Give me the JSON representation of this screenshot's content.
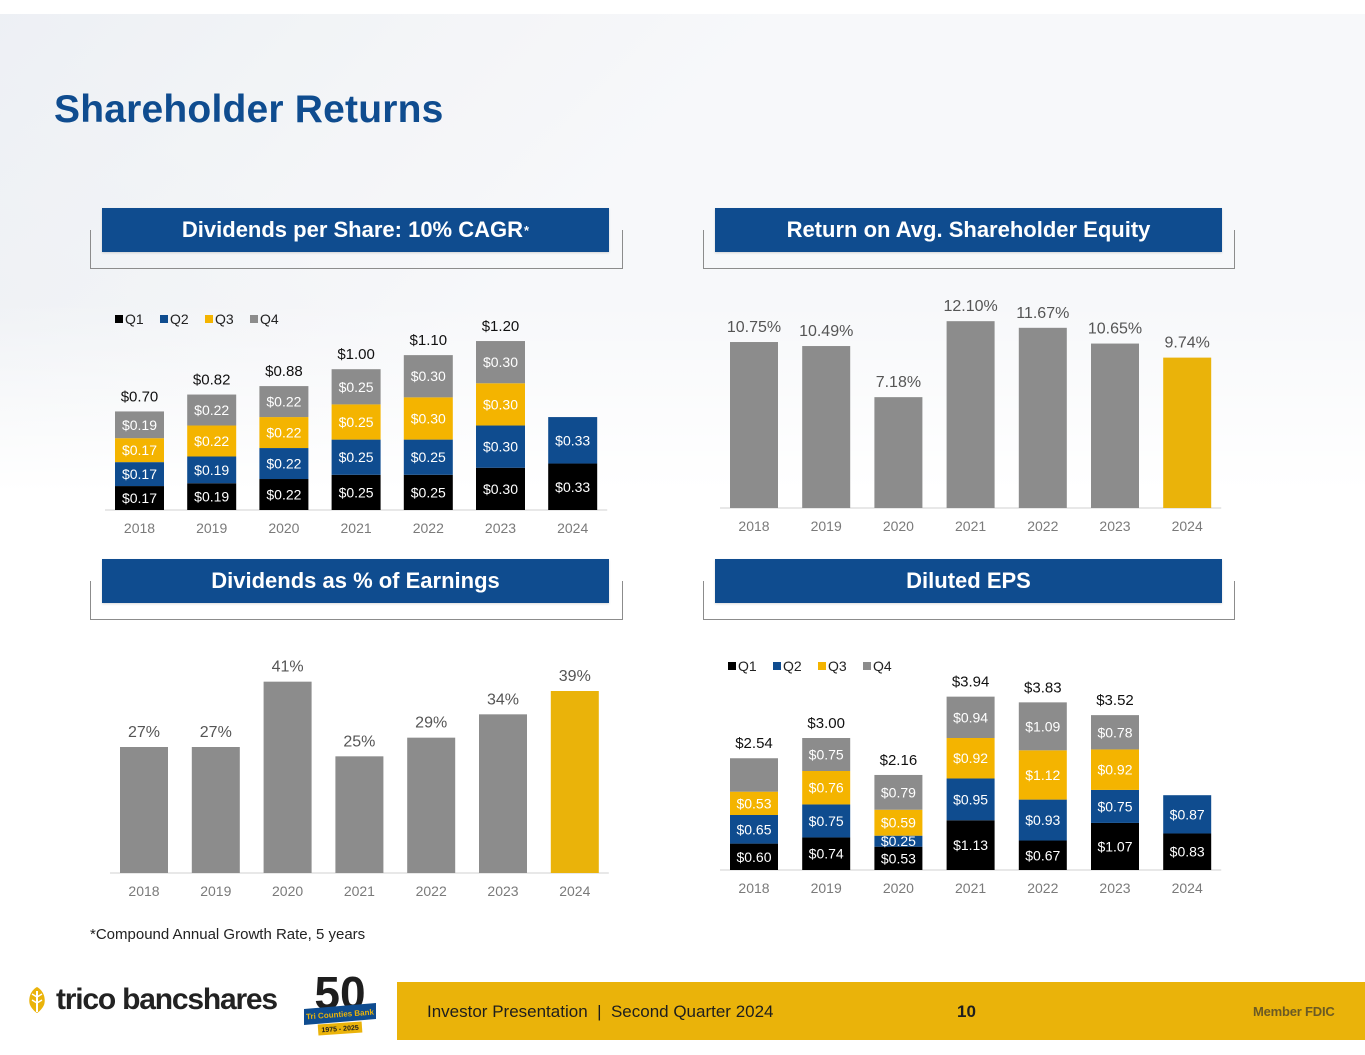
{
  "page": {
    "title": "Shareholder Returns",
    "footnote": "*Compound Annual Growth Rate, 5 years",
    "footer_text": "Investor Presentation  |  Second Quarter 2024",
    "page_number": "10",
    "fdic": "Member FDIC",
    "logo_text": "trico bancshares",
    "anniversary": {
      "number": "50",
      "ribbon": "Tri Counties Bank",
      "years": "1975 - 2025"
    }
  },
  "panels": {
    "dividends": {
      "title": "Dividends per Share: 10% CAGR",
      "title_sup": "*"
    },
    "roe": {
      "title": "Return on Avg. Shareholder Equity"
    },
    "payout": {
      "title": "Dividends as % of Earnings"
    },
    "eps": {
      "title": "Diluted EPS"
    }
  },
  "colors": {
    "q1": "#000000",
    "q2": "#0f4c8f",
    "q3": "#f4b400",
    "q4": "#8c8c8c",
    "highlight": "#eab30a",
    "bar": "#8c8c8c"
  },
  "chart_data": [
    {
      "id": "dividends",
      "type": "bar",
      "stacked": true,
      "title": "Dividends per Share: 10% CAGR*",
      "categories": [
        "2018",
        "2019",
        "2020",
        "2021",
        "2022",
        "2023",
        "2024"
      ],
      "legend": [
        "Q1",
        "Q2",
        "Q3",
        "Q4"
      ],
      "series": [
        {
          "name": "Q1",
          "values": [
            0.17,
            0.19,
            0.22,
            0.25,
            0.25,
            0.3,
            0.33
          ],
          "labels": [
            "$0.17",
            "$0.19",
            "$0.22",
            "$0.25",
            "$0.25",
            "$0.30",
            "$0.33"
          ]
        },
        {
          "name": "Q2",
          "values": [
            0.17,
            0.19,
            0.22,
            0.25,
            0.25,
            0.3,
            0.33
          ],
          "labels": [
            "$0.17",
            "$0.19",
            "$0.22",
            "$0.25",
            "$0.25",
            "$0.30",
            "$0.33"
          ]
        },
        {
          "name": "Q3",
          "values": [
            0.17,
            0.22,
            0.22,
            0.25,
            0.3,
            0.3,
            null
          ],
          "labels": [
            "$0.17",
            "$0.22",
            "$0.22",
            "$0.25",
            "$0.30",
            "$0.30",
            ""
          ]
        },
        {
          "name": "Q4",
          "values": [
            0.19,
            0.22,
            0.22,
            0.25,
            0.3,
            0.3,
            null
          ],
          "labels": [
            "$0.19",
            "$0.22",
            "$0.22",
            "$0.25",
            "$0.30",
            "$0.30",
            ""
          ]
        }
      ],
      "totals": [
        "$0.70",
        "$0.82",
        "$0.88",
        "$1.00",
        "$1.10",
        "$1.20",
        ""
      ],
      "ylim": [
        0,
        1.25
      ]
    },
    {
      "id": "roe",
      "type": "bar",
      "title": "Return on Avg. Shareholder Equity",
      "categories": [
        "2018",
        "2019",
        "2020",
        "2021",
        "2022",
        "2023",
        "2024"
      ],
      "values": [
        10.75,
        10.49,
        7.18,
        12.1,
        11.67,
        10.65,
        9.74
      ],
      "labels": [
        "10.75%",
        "10.49%",
        "7.18%",
        "12.10%",
        "11.67%",
        "10.65%",
        "9.74%"
      ],
      "highlight_last": true,
      "ylim": [
        0,
        12.5
      ]
    },
    {
      "id": "payout",
      "type": "bar",
      "title": "Dividends as % of Earnings",
      "categories": [
        "2018",
        "2019",
        "2020",
        "2021",
        "2022",
        "2023",
        "2024"
      ],
      "values": [
        27,
        27,
        41,
        25,
        29,
        34,
        39
      ],
      "labels": [
        "27%",
        "27%",
        "41%",
        "25%",
        "29%",
        "34%",
        "39%"
      ],
      "highlight_last": true,
      "ylim": [
        0,
        42
      ]
    },
    {
      "id": "eps",
      "type": "bar",
      "stacked": true,
      "title": "Diluted EPS",
      "categories": [
        "2018",
        "2019",
        "2020",
        "2021",
        "2022",
        "2023",
        "2024"
      ],
      "legend": [
        "Q1",
        "Q2",
        "Q3",
        "Q4"
      ],
      "series": [
        {
          "name": "Q1",
          "values": [
            0.6,
            0.74,
            0.53,
            1.13,
            0.67,
            1.07,
            0.83
          ],
          "labels": [
            "$0.60",
            "$0.74",
            "$0.53",
            "$1.13",
            "$0.67",
            "$1.07",
            "$0.83"
          ]
        },
        {
          "name": "Q2",
          "values": [
            0.65,
            0.75,
            0.25,
            0.95,
            0.93,
            0.75,
            0.87
          ],
          "labels": [
            "$0.65",
            "$0.75",
            "$0.25",
            "$0.95",
            "$0.93",
            "$0.75",
            "$0.87"
          ]
        },
        {
          "name": "Q3",
          "values": [
            0.53,
            0.76,
            0.59,
            0.92,
            1.12,
            0.92,
            null
          ],
          "labels": [
            "$0.53",
            "$0.76",
            "$0.59",
            "$0.92",
            "$1.12",
            "$0.92",
            ""
          ]
        },
        {
          "name": "Q4",
          "values": [
            0.76,
            0.75,
            0.79,
            0.94,
            1.09,
            0.78,
            null
          ],
          "labels": [
            "",
            "$0.75",
            "$0.79",
            "$0.94",
            "$1.09",
            "$0.78",
            ""
          ]
        }
      ],
      "totals": [
        "$2.54",
        "$3.00",
        "$2.16",
        "$3.94",
        "$3.83",
        "$3.52",
        ""
      ],
      "ylim": [
        0,
        4.0
      ]
    }
  ]
}
